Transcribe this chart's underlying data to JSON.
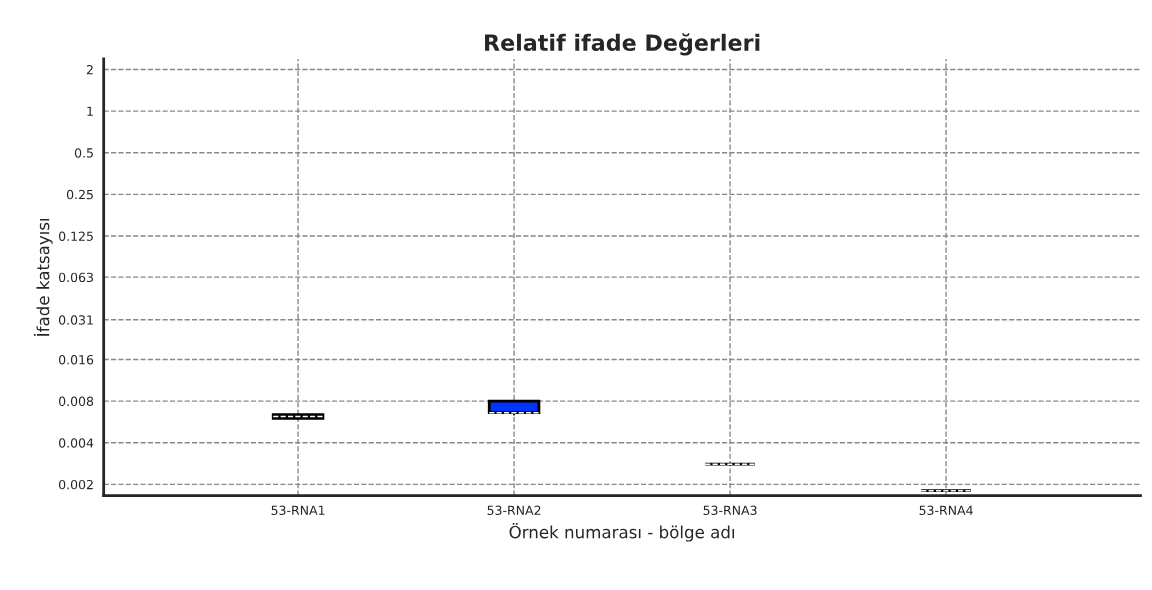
{
  "chart_data": {
    "type": "box",
    "title": "Relatif ifade Değerleri",
    "xlabel": "Örnek numarası - bölge adı",
    "ylabel": "İfade katsayısı",
    "categories": [
      "53-RNA1",
      "53-RNA2",
      "53-RNA3",
      "53-RNA4"
    ],
    "boxes": [
      {
        "low": 0.006,
        "q1": 0.006,
        "median": 0.0062,
        "q3": 0.0064,
        "high": 0.0064
      },
      {
        "low": 0.0064,
        "q1": 0.0066,
        "median": 0.0066,
        "q3": 0.008,
        "high": 0.008
      },
      {
        "low": 0.0028,
        "q1": 0.0028,
        "median": 0.0028,
        "q3": 0.0028,
        "high": 0.0028
      },
      {
        "low": 0.0018,
        "q1": 0.0018,
        "median": 0.0018,
        "q3": 0.0018,
        "high": 0.0018
      }
    ],
    "colors": [
      "#000000",
      "#0033ff",
      "#000000",
      "#000000"
    ],
    "log": "y",
    "ylim": [
      0.00166,
      2.38
    ],
    "yticks": [
      0.002,
      0.004,
      0.008,
      0.016,
      {
        "value": 0.031,
        "label": "0.031"
      },
      {
        "value": 0.063,
        "label": "0.063"
      },
      {
        "value": 0.125,
        "label": "0.125"
      },
      0.25,
      0.5,
      1,
      2
    ],
    "grid": true
  }
}
